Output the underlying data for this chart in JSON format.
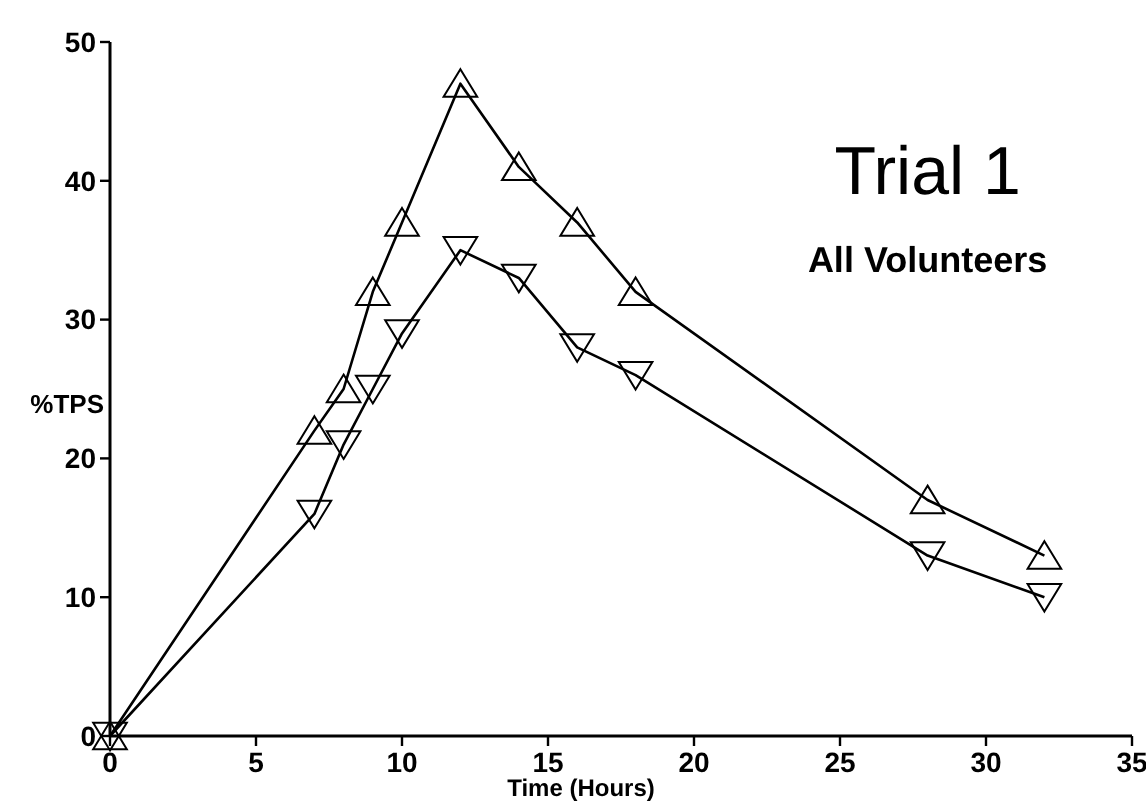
{
  "chart_data": {
    "type": "line",
    "title": "Trial 1",
    "subtitle": "All Volunteers",
    "xlabel": "Time (Hours)",
    "ylabel": "%TPS",
    "x": [
      0,
      7,
      8,
      9,
      10,
      12,
      14,
      16,
      18,
      28,
      32
    ],
    "series": [
      {
        "color": "#000000",
        "values": [
          0,
          22,
          25,
          32,
          37,
          47,
          41,
          37,
          32,
          17,
          13
        ]
      },
      {
        "color": "#000000",
        "marker": "triangle-down",
        "values": [
          0,
          16,
          21,
          25,
          29,
          35,
          33,
          28,
          26,
          13,
          10
        ]
      }
    ],
    "xlim": [
      0,
      35
    ],
    "xticks": [
      0,
      5,
      10,
      15,
      20,
      25,
      30,
      35
    ],
    "ylim": [
      0,
      50
    ],
    "yticks": [
      0,
      10,
      20,
      30,
      40,
      50
    ],
    "grid": false,
    "marker": "triangle",
    "line_style": "solid"
  }
}
